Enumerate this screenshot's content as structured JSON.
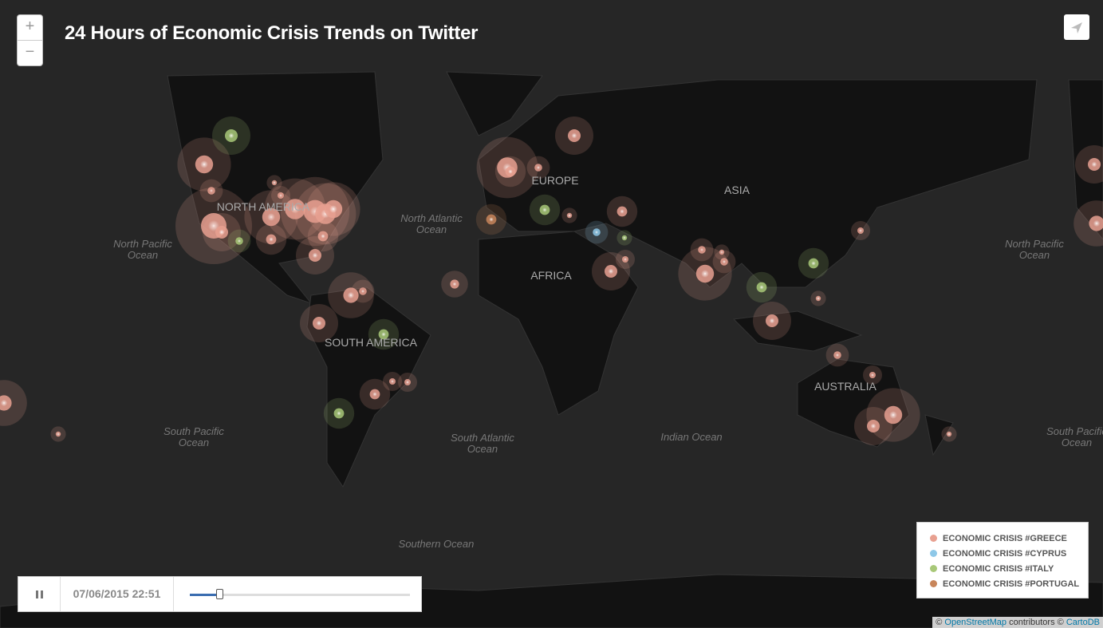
{
  "header": {
    "title": "24 Hours of Economic Crisis Trends on Twitter"
  },
  "zoom": {
    "in": "+",
    "out": "−"
  },
  "map": {
    "continents": [
      "NORTH AMERICA",
      "EUROPE",
      "ASIA",
      "AFRICA",
      "SOUTH AMERICA",
      "AUSTRALIA"
    ],
    "oceans": [
      [
        "North Pacific",
        "Ocean"
      ],
      [
        "North Atlantic",
        "Ocean"
      ],
      [
        "South Pacific",
        "Ocean"
      ],
      [
        "South Atlantic",
        "Ocean"
      ],
      [
        "Indian Ocean"
      ],
      [
        "Southern Ocean"
      ],
      [
        "North Pacific",
        "Ocean"
      ],
      [
        "South Pacific",
        "Ocean"
      ]
    ]
  },
  "player": {
    "time": "07/06/2015 22:51"
  },
  "legend": [
    {
      "label": "ECONOMIC CRISIS #GREECE",
      "color": "#e8a090"
    },
    {
      "label": "ECONOMIC CRISIS #CYPRUS",
      "color": "#8ec8e8"
    },
    {
      "label": "ECONOMIC CRISIS #ITALY",
      "color": "#a8c878"
    },
    {
      "label": "ECONOMIC CRISIS #PORTUGAL",
      "color": "#c8855a"
    }
  ],
  "attribution": {
    "prefix": "©",
    "osm": "OpenStreetMap",
    "middle": "contributors ©",
    "carto": "CartoDB"
  }
}
